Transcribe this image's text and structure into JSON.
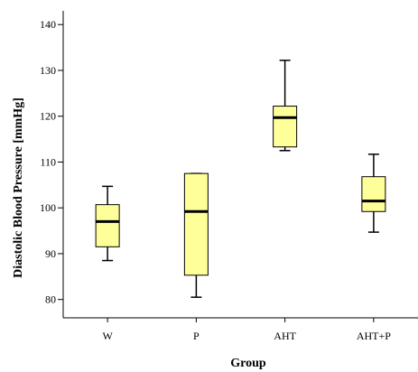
{
  "chart_data": {
    "type": "boxplot",
    "xlabel": "Group",
    "ylabel": "Diastolic Blood Pressure [mmHg]",
    "ylim": [
      76,
      143
    ],
    "yticks": [
      80,
      90,
      100,
      110,
      120,
      130,
      140
    ],
    "grid": false,
    "categories": [
      "W",
      "P",
      "AHT",
      "AHT+P"
    ],
    "boxes": [
      {
        "category": "W",
        "min": 88.5,
        "q1": 91.5,
        "median": 97,
        "q3": 100.7,
        "max": 104.7
      },
      {
        "category": "P",
        "min": 80.5,
        "q1": 85.3,
        "median": 99.2,
        "q3": 107.5,
        "max": 107.5
      },
      {
        "category": "AHT",
        "min": 112.5,
        "q1": 113.3,
        "median": 119.7,
        "q3": 122.2,
        "max": 132.2
      },
      {
        "category": "AHT+P",
        "min": 94.7,
        "q1": 99.2,
        "median": 101.5,
        "q3": 106.8,
        "max": 111.7
      }
    ],
    "colors": {
      "box_fill": "#ffff99",
      "box_stroke": "#000000",
      "axis": "#000000"
    }
  }
}
